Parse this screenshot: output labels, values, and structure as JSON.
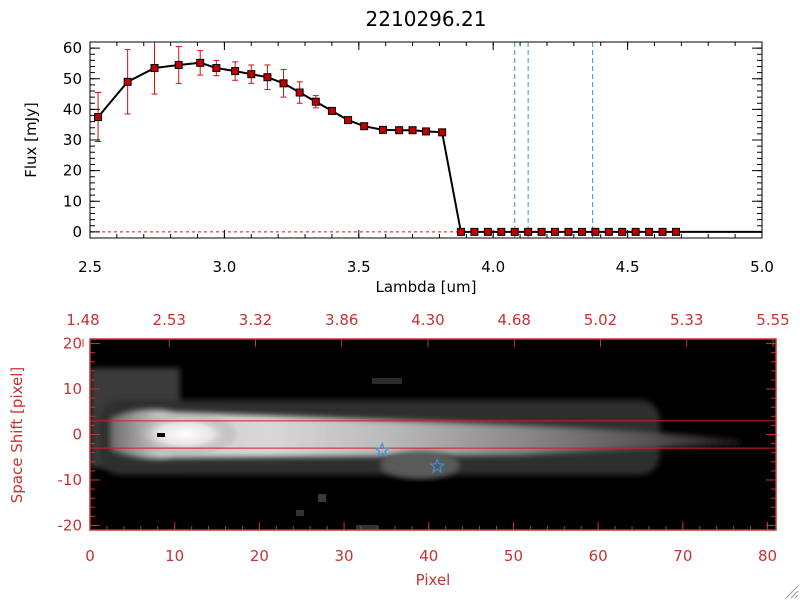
{
  "chart_data": [
    {
      "type": "line",
      "title": "2210296.21",
      "xlabel": "Lambda [um]",
      "ylabel": "Flux [mJy]",
      "xlim": [
        2.5,
        5.0
      ],
      "ylim": [
        -2,
        62
      ],
      "xticks": [
        "2.5",
        "3.0",
        "3.5",
        "4.0",
        "4.5",
        "5.0"
      ],
      "yticks": [
        "0",
        "10",
        "20",
        "30",
        "40",
        "50",
        "60"
      ],
      "colors": {
        "line": "#000000",
        "marker": "#c00000",
        "errorbar": "#d01010",
        "vline": "#3d8fd6",
        "zero_line": "#d01010"
      },
      "series": [
        {
          "x": [
            2.53,
            2.64,
            2.74,
            2.83,
            2.91,
            2.97,
            3.04,
            3.1,
            3.16,
            3.22,
            3.28,
            3.34,
            3.4,
            3.46,
            3.52,
            3.59,
            3.65,
            3.7,
            3.75,
            3.81,
            3.88,
            3.93,
            3.98,
            4.03,
            4.08,
            4.13,
            4.18,
            4.23,
            4.28,
            4.33,
            4.38,
            4.43,
            4.48,
            4.53,
            4.58,
            4.63,
            4.68
          ],
          "y": [
            37.5,
            49.0,
            53.5,
            54.5,
            55.2,
            53.5,
            52.5,
            51.5,
            50.5,
            48.5,
            45.5,
            42.5,
            39.5,
            36.5,
            34.5,
            33.3,
            33.2,
            33.2,
            32.8,
            32.5,
            0,
            0,
            0,
            0,
            0,
            0,
            0,
            0,
            0,
            0,
            0,
            0,
            0,
            0,
            0,
            0,
            0
          ],
          "yerr": [
            8,
            10.5,
            8.5,
            6,
            4,
            2.5,
            3,
            3,
            4,
            4.5,
            3.5,
            2,
            1,
            0.8,
            0.8,
            0.8,
            0.8,
            0.8,
            0.8,
            0.8,
            0,
            0,
            0,
            0,
            0,
            0,
            0,
            0,
            0,
            0,
            0,
            0,
            0,
            0,
            0,
            0,
            0
          ]
        }
      ],
      "vlines": [
        4.08,
        4.13,
        4.37
      ]
    },
    {
      "type": "heatmap",
      "xlabel": "Pixel",
      "ylabel": "Space Shift [pixel]",
      "top_axis_ticks": [
        "1.48",
        "2.53",
        "3.32",
        "3.86",
        "4.30",
        "4.68",
        "5.02",
        "5.33",
        "5.55"
      ],
      "xlim": [
        0,
        81
      ],
      "ylim": [
        -21,
        21
      ],
      "xticks": [
        "0",
        "10",
        "20",
        "30",
        "40",
        "50",
        "60",
        "70",
        "80"
      ],
      "yticks": [
        "-20",
        "-10",
        "0",
        "10",
        "20"
      ],
      "colors": {
        "axes": "#c83232",
        "guide_lines": "#d02020",
        "star": "#3d8fd6",
        "background": "#000000"
      },
      "guide_lines_y": [
        3,
        -3
      ],
      "stars": [
        {
          "x": 34.5,
          "y": -3.5
        },
        {
          "x": 41,
          "y": -7
        }
      ]
    }
  ]
}
